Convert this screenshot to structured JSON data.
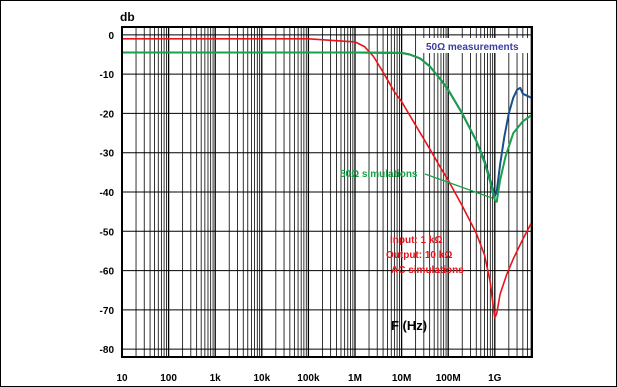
{
  "chart_data": {
    "type": "line",
    "title": "",
    "xlabel": "F (Hz)",
    "ylabel": "db",
    "x_scale": "log",
    "xlim": [
      10,
      6000000000
    ],
    "ylim": [
      -82,
      2
    ],
    "grid": true,
    "x_ticks": [
      {
        "value": 10,
        "label": "10"
      },
      {
        "value": 100,
        "label": "100"
      },
      {
        "value": 1000,
        "label": "1k"
      },
      {
        "value": 10000,
        "label": "10k"
      },
      {
        "value": 100000,
        "label": "100k"
      },
      {
        "value": 1000000,
        "label": "1M"
      },
      {
        "value": 10000000,
        "label": "10M"
      },
      {
        "value": 100000000,
        "label": "100M"
      },
      {
        "value": 1000000000,
        "label": "1G"
      }
    ],
    "y_ticks": [
      0,
      -10,
      -20,
      -30,
      -40,
      -50,
      -60,
      -70,
      -80
    ],
    "series": [
      {
        "color": "#e8141c",
        "points": [
          [
            10,
            -1
          ],
          [
            100,
            -1
          ],
          [
            1000,
            -1
          ],
          [
            10000,
            -1
          ],
          [
            100000,
            -1
          ],
          [
            1000000,
            -1.8
          ],
          [
            1600000,
            -3
          ],
          [
            2500000,
            -5.5
          ],
          [
            4000000,
            -9.5
          ],
          [
            7000000,
            -14.5
          ],
          [
            10000000,
            -17
          ],
          [
            20000000,
            -23
          ],
          [
            40000000,
            -29
          ],
          [
            70000000,
            -34
          ],
          [
            100000000,
            -37
          ],
          [
            200000000,
            -43.5
          ],
          [
            400000000,
            -50.5
          ],
          [
            600000000,
            -56
          ],
          [
            800000000,
            -63
          ],
          [
            900000000,
            -68
          ],
          [
            1000000000,
            -72
          ],
          [
            1100000000,
            -71
          ],
          [
            1300000000,
            -66
          ],
          [
            1800000000,
            -61
          ],
          [
            2500000000,
            -57
          ],
          [
            4000000000,
            -52
          ],
          [
            6000000000,
            -48
          ]
        ]
      },
      {
        "color": "#1a4e8c",
        "points": [
          [
            10,
            -4.5
          ],
          [
            100,
            -4.5
          ],
          [
            1000,
            -4.5
          ],
          [
            100000,
            -4.5
          ],
          [
            1000000,
            -4.5
          ],
          [
            10000000,
            -4.6
          ],
          [
            15000000,
            -5
          ],
          [
            25000000,
            -6
          ],
          [
            40000000,
            -8
          ],
          [
            70000000,
            -11.5
          ],
          [
            100000000,
            -14
          ],
          [
            200000000,
            -20
          ],
          [
            400000000,
            -27
          ],
          [
            600000000,
            -32
          ],
          [
            800000000,
            -37
          ],
          [
            1000000000,
            -41
          ],
          [
            1100000000,
            -40
          ],
          [
            1300000000,
            -33
          ],
          [
            1600000000,
            -26
          ],
          [
            2000000000,
            -20
          ],
          [
            2500000000,
            -16
          ],
          [
            3000000000,
            -14
          ],
          [
            3500000000,
            -13.5
          ],
          [
            4000000000,
            -15
          ],
          [
            6000000000,
            -16
          ]
        ]
      },
      {
        "color": "#1aa04a",
        "points": [
          [
            10,
            -4.5
          ],
          [
            100,
            -4.5
          ],
          [
            1000,
            -4.5
          ],
          [
            100000,
            -4.5
          ],
          [
            1000000,
            -4.5
          ],
          [
            10000000,
            -4.6
          ],
          [
            15000000,
            -5
          ],
          [
            25000000,
            -6
          ],
          [
            40000000,
            -8
          ],
          [
            70000000,
            -11.5
          ],
          [
            100000000,
            -14
          ],
          [
            200000000,
            -20
          ],
          [
            400000000,
            -27
          ],
          [
            600000000,
            -32.5
          ],
          [
            800000000,
            -37.5
          ],
          [
            1000000000,
            -42
          ],
          [
            1100000000,
            -42.5
          ],
          [
            1300000000,
            -37
          ],
          [
            1700000000,
            -31
          ],
          [
            2500000000,
            -25
          ],
          [
            4000000000,
            -22
          ],
          [
            6000000000,
            -20.5
          ]
        ]
      }
    ],
    "annotations": [
      {
        "text": "50Ω measurements",
        "color": "#3b3fa0"
      },
      {
        "text": "50Ω  simulations",
        "color": "#1aa04a"
      },
      {
        "text": "Input: 1 kΩ",
        "color": "#e8141c"
      },
      {
        "text": "Output: 10 kΩ",
        "color": "#e8141c"
      },
      {
        "text": "AC simulations",
        "color": "#e8141c"
      }
    ]
  }
}
